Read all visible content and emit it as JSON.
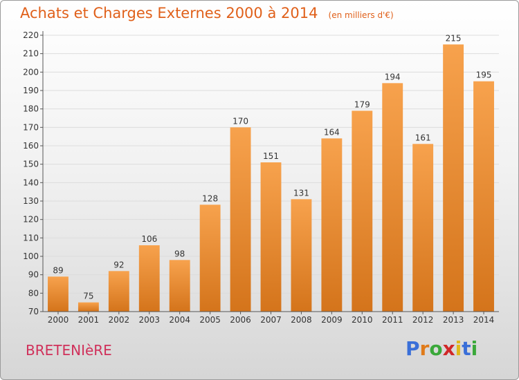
{
  "header": {
    "title": "Achats et Charges Externes 2000 à 2014",
    "unit": "(en milliers d'€)"
  },
  "footer": {
    "location": "BRETENIèRE",
    "logo_letters": [
      "P",
      "r",
      "o",
      "x",
      "i",
      "t",
      "i"
    ],
    "logo_colors": [
      "#3a6fd8",
      "#e07b1a",
      "#3aa83a",
      "#d02828",
      "#e0b81a",
      "#3a6fd8",
      "#3aa83a"
    ]
  },
  "chart_data": {
    "type": "bar",
    "categories": [
      "2000",
      "2001",
      "2002",
      "2003",
      "2004",
      "2005",
      "2006",
      "2007",
      "2008",
      "2009",
      "2010",
      "2011",
      "2012",
      "2013",
      "2014"
    ],
    "values": [
      89,
      75,
      92,
      106,
      98,
      128,
      170,
      151,
      131,
      164,
      179,
      194,
      161,
      215,
      195
    ],
    "title": "Achats et Charges Externes 2000 à 2014",
    "ylim": [
      70,
      220
    ],
    "yticks": [
      70,
      80,
      90,
      100,
      110,
      120,
      130,
      140,
      150,
      160,
      170,
      180,
      190,
      200,
      210,
      220
    ],
    "grid": true,
    "bar_color_top": "#f7a24d",
    "bar_color_bottom": "#d4741b"
  }
}
